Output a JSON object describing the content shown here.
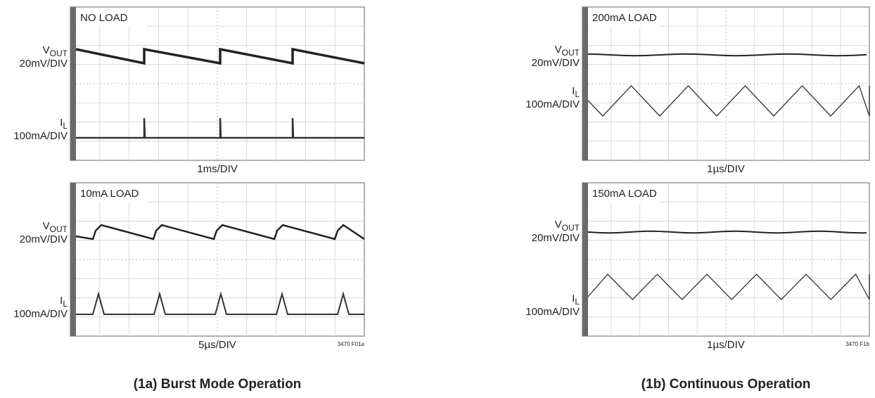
{
  "figures": [
    {
      "panels": [
        {
          "load": "NO LOAD",
          "channels": [
            {
              "symbol": "V",
              "sub": "OUT",
              "scale": "20mV/DIV"
            },
            {
              "symbol": "I",
              "sub": "L",
              "scale": "100mA/DIV"
            }
          ],
          "timebase": "1ms/DIV"
        },
        {
          "load": "10mA LOAD",
          "channels": [
            {
              "symbol": "V",
              "sub": "OUT",
              "scale": "20mV/DIV"
            },
            {
              "symbol": "I",
              "sub": "L",
              "scale": "100mA/DIV"
            }
          ],
          "timebase": "5µs/DIV",
          "code": "3470 F01a"
        }
      ],
      "caption": "(1a) Burst Mode Operation"
    },
    {
      "panels": [
        {
          "load": "200mA LOAD",
          "channels": [
            {
              "symbol": "V",
              "sub": "OUT",
              "scale": "20mV/DIV"
            },
            {
              "symbol": "I",
              "sub": "L",
              "scale": "100mA/DIV"
            }
          ],
          "timebase": "1µs/DIV"
        },
        {
          "load": "150mA LOAD",
          "channels": [
            {
              "symbol": "V",
              "sub": "OUT",
              "scale": "20mV/DIV"
            },
            {
              "symbol": "I",
              "sub": "L",
              "scale": "100mA/DIV"
            }
          ],
          "timebase": "1µs/DIV",
          "code": "3470 F1b"
        }
      ],
      "caption": "(1b) Continuous Operation"
    }
  ]
}
